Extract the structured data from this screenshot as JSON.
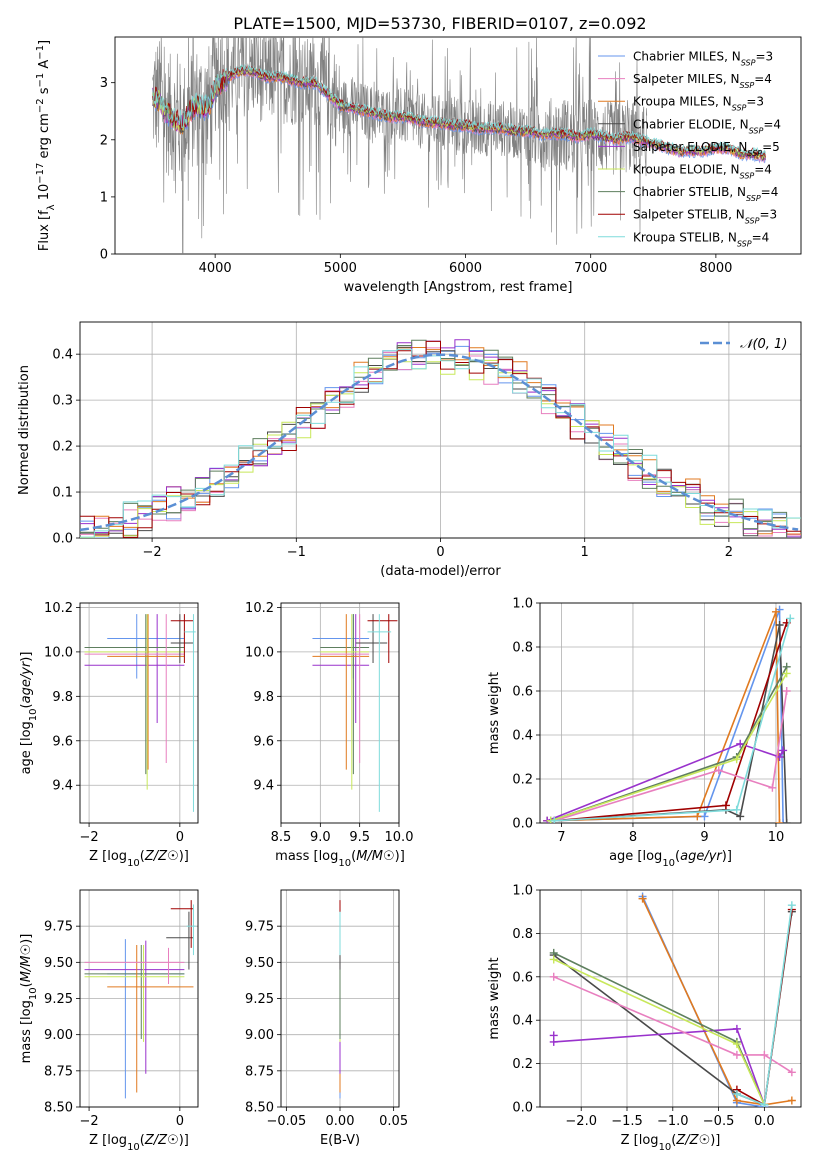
{
  "figure_title": "PLATE=1500, MJD=53730, FIBERID=0107, z=0.092",
  "colors": {
    "data": "#808080",
    "Chabrier MILES": "#6495ED",
    "Salpeter MILES": "#E87FBF",
    "Kroupa MILES": "#E07A20",
    "Chabrier ELODIE": "#4A4A4A",
    "Salpeter ELODIE": "#9932CC",
    "Kroupa ELODIE": "#C8E85A",
    "Chabrier STELIB": "#5E7F5E",
    "Salpeter STELIB": "#A00000",
    "Kroupa STELIB": "#7FDBDB",
    "normal": "#5B8FD4",
    "grid": "#b0b0b0"
  },
  "chart_data": [
    {
      "id": "spectrum",
      "type": "line",
      "title": "PLATE=1500, MJD=53730, FIBERID=0107, z=0.092",
      "xlabel": "wavelength [Angstrom, rest frame]",
      "ylabel": "Flux [f_λ 10^-17 erg cm^-2 s^-1 A^-1]",
      "xlim": [
        3200,
        8680
      ],
      "ylim": [
        0,
        3.8
      ],
      "xticks": [
        4000,
        5000,
        6000,
        7000,
        8000
      ],
      "yticks": [
        0,
        1,
        2,
        3
      ],
      "grid": false,
      "legend_position": "top-right",
      "legend": [
        {
          "name": "Chabrier MILES",
          "nssp": "3",
          "color": "#6495ED"
        },
        {
          "name": "Salpeter MILES",
          "nssp": "4",
          "color": "#E87FBF"
        },
        {
          "name": "Kroupa MILES",
          "nssp": "3",
          "color": "#E07A20"
        },
        {
          "name": "Chabrier ELODIE",
          "nssp": "4",
          "color": "#4A4A4A"
        },
        {
          "name": "Salpeter ELODIE",
          "nssp": "5",
          "color": "#9932CC"
        },
        {
          "name": "Kroupa ELODIE",
          "nssp": "4",
          "color": "#C8E85A"
        },
        {
          "name": "Chabrier STELIB",
          "nssp": "4",
          "color": "#5E7F5E"
        },
        {
          "name": "Salpeter STELIB",
          "nssp": "3",
          "color": "#A00000"
        },
        {
          "name": "Kroupa STELIB",
          "nssp": "4",
          "color": "#7FDBDB"
        }
      ],
      "continuum": {
        "x": [
          3500,
          3550,
          3600,
          3650,
          3700,
          3750,
          3800,
          3850,
          3900,
          3950,
          4000,
          4100,
          4200,
          4300,
          4400,
          4500,
          4600,
          4700,
          4800,
          4900,
          5000,
          5100,
          5200,
          5300,
          5400,
          5500,
          5600,
          5700,
          5800,
          5900,
          6000,
          6100,
          6200,
          6300,
          6400,
          6500,
          6600,
          6700,
          6800,
          6900,
          7000,
          7100,
          7200,
          7300,
          7400,
          7700,
          7800,
          7900,
          8000,
          8100,
          8200,
          8300,
          8400
        ],
        "y": [
          2.75,
          2.7,
          2.5,
          2.4,
          2.3,
          2.3,
          2.5,
          2.6,
          2.55,
          2.6,
          2.9,
          3.1,
          3.2,
          3.2,
          3.1,
          3.1,
          3.05,
          3.0,
          3.0,
          2.8,
          2.6,
          2.55,
          2.5,
          2.45,
          2.4,
          2.4,
          2.35,
          2.3,
          2.3,
          2.25,
          2.25,
          2.2,
          2.2,
          2.2,
          2.15,
          2.15,
          2.1,
          2.1,
          2.1,
          2.05,
          2.1,
          2.05,
          2.0,
          2.05,
          2.0,
          1.8,
          1.8,
          1.8,
          1.85,
          1.85,
          1.75,
          1.75,
          1.7
        ]
      },
      "observed_range": [
        3500,
        7450
      ],
      "model_range": [
        3500,
        8400
      ]
    },
    {
      "id": "residuals",
      "type": "histogram",
      "xlabel": "(data-model)/error",
      "ylabel": "Normed distribution",
      "xlim": [
        -2.5,
        2.5
      ],
      "ylim": [
        0,
        0.47
      ],
      "xticks": [
        -2,
        -1,
        0,
        1,
        2
      ],
      "yticks": [
        0,
        0.1,
        0.2,
        0.3,
        0.4
      ],
      "grid": true,
      "legend_position": "top-right",
      "curve_label": "𝒩(0, 1)",
      "bin_width": 0.1,
      "series_scatter": [
        0.015,
        -0.02,
        0.025,
        -0.01,
        0.03,
        -0.025,
        0.01,
        -0.015,
        0.02
      ]
    },
    {
      "id": "age_vs_Z",
      "type": "errorbar",
      "xlabel": "Z [log10(Z/Z☉)]",
      "ylabel": "age  [log10(age/yr)]",
      "xlim": [
        -2.2,
        0.4
      ],
      "ylim": [
        9.23,
        10.22
      ],
      "xticks": [
        -2,
        0
      ],
      "yticks": [
        9.4,
        9.6,
        9.8,
        10.0,
        10.2
      ],
      "grid": true,
      "points": [
        {
          "x": -0.95,
          "y": 10.06,
          "xlo": -1.6,
          "xhi": 0.1,
          "ylo": 9.88,
          "yhi": 10.17,
          "color": "#6495ED"
        },
        {
          "x": -0.5,
          "y": 9.94,
          "xlo": -2.1,
          "xhi": 0.1,
          "ylo": 9.68,
          "yhi": 10.17,
          "color": "#9932CC"
        },
        {
          "x": -0.75,
          "y": 10.02,
          "xlo": -2.1,
          "xhi": 0.1,
          "ylo": 9.45,
          "yhi": 10.17,
          "color": "#5E7F5E"
        },
        {
          "x": -0.72,
          "y": 10.0,
          "xlo": -2.1,
          "xhi": 0.1,
          "ylo": 9.38,
          "yhi": 10.17,
          "color": "#C8E85A"
        },
        {
          "x": -0.7,
          "y": 9.98,
          "xlo": -1.6,
          "xhi": 0.1,
          "ylo": 9.47,
          "yhi": 10.17,
          "color": "#E07A20"
        },
        {
          "x": -0.3,
          "y": 9.99,
          "xlo": -2.1,
          "xhi": 0.1,
          "ylo": 9.5,
          "yhi": 10.17,
          "color": "#E87FBF"
        },
        {
          "x": 0.0,
          "y": 10.04,
          "xlo": -0.2,
          "xhi": 0.3,
          "ylo": 9.95,
          "yhi": 10.17,
          "color": "#4A4A4A"
        },
        {
          "x": 0.1,
          "y": 10.14,
          "xlo": -0.2,
          "xhi": 0.3,
          "ylo": 9.95,
          "yhi": 10.17,
          "color": "#A00000"
        },
        {
          "x": 0.3,
          "y": 10.09,
          "xlo": 0.1,
          "xhi": 0.35,
          "ylo": 9.28,
          "yhi": 10.17,
          "color": "#7FDBDB"
        }
      ]
    },
    {
      "id": "age_vs_mass",
      "type": "errorbar",
      "xlabel": "mass [log10(M/M☉)]",
      "ylabel": "",
      "xlim": [
        8.5,
        10.0
      ],
      "ylim": [
        9.23,
        10.22
      ],
      "xticks": [
        8.5,
        9.0,
        9.5,
        10.0
      ],
      "yticks": [
        9.4,
        9.6,
        9.8,
        10.0,
        10.2
      ],
      "grid": true,
      "points": [
        {
          "x": 9.42,
          "y": 10.06,
          "xlo": 8.9,
          "xhi": 9.62,
          "ylo": 9.88,
          "yhi": 10.17,
          "color": "#6495ED"
        },
        {
          "x": 9.45,
          "y": 9.94,
          "xlo": 8.9,
          "xhi": 9.62,
          "ylo": 9.68,
          "yhi": 10.17,
          "color": "#9932CC"
        },
        {
          "x": 9.42,
          "y": 10.02,
          "xlo": 9.0,
          "xhi": 9.62,
          "ylo": 9.45,
          "yhi": 10.17,
          "color": "#5E7F5E"
        },
        {
          "x": 9.4,
          "y": 10.0,
          "xlo": 9.0,
          "xhi": 9.62,
          "ylo": 9.38,
          "yhi": 10.17,
          "color": "#C8E85A"
        },
        {
          "x": 9.33,
          "y": 9.98,
          "xlo": 8.9,
          "xhi": 9.62,
          "ylo": 9.47,
          "yhi": 10.17,
          "color": "#E07A20"
        },
        {
          "x": 9.5,
          "y": 9.99,
          "xlo": 9.0,
          "xhi": 9.62,
          "ylo": 9.5,
          "yhi": 10.17,
          "color": "#E87FBF"
        },
        {
          "x": 9.67,
          "y": 10.04,
          "xlo": 9.45,
          "xhi": 9.85,
          "ylo": 9.95,
          "yhi": 10.17,
          "color": "#4A4A4A"
        },
        {
          "x": 9.87,
          "y": 10.14,
          "xlo": 9.6,
          "xhi": 9.98,
          "ylo": 9.95,
          "yhi": 10.17,
          "color": "#A00000"
        },
        {
          "x": 9.75,
          "y": 10.09,
          "xlo": 9.6,
          "xhi": 9.9,
          "ylo": 9.28,
          "yhi": 10.17,
          "color": "#7FDBDB"
        }
      ]
    },
    {
      "id": "weight_vs_age",
      "type": "line",
      "xlabel": "age  [log10(age/yr)]",
      "ylabel": "mass weight",
      "xlim": [
        6.7,
        10.35
      ],
      "ylim": [
        0,
        1.0
      ],
      "xticks": [
        7,
        8,
        9,
        10
      ],
      "yticks": [
        0.0,
        0.2,
        0.4,
        0.6,
        0.8,
        1.0
      ],
      "grid": true,
      "series": [
        {
          "color": "#6495ED",
          "x": [
            6.8,
            9.0,
            10.05,
            10.1
          ],
          "y": [
            0.01,
            0.03,
            0.97,
            0.0
          ]
        },
        {
          "color": "#E07A20",
          "x": [
            6.8,
            8.9,
            10.0,
            10.05
          ],
          "y": [
            0.01,
            0.03,
            0.96,
            0.0
          ]
        },
        {
          "color": "#4A4A4A",
          "x": [
            6.9,
            9.3,
            9.5,
            10.05,
            10.15
          ],
          "y": [
            0.01,
            0.06,
            0.03,
            0.9,
            0.0
          ]
        },
        {
          "color": "#A00000",
          "x": [
            6.9,
            9.3,
            10.15
          ],
          "y": [
            0.01,
            0.08,
            0.91
          ]
        },
        {
          "color": "#9932CC",
          "x": [
            6.8,
            9.5,
            10.05,
            10.1
          ],
          "y": [
            0.01,
            0.36,
            0.3,
            0.33
          ]
        },
        {
          "color": "#E87FBF",
          "x": [
            6.9,
            9.2,
            9.95,
            10.15
          ],
          "y": [
            0.01,
            0.24,
            0.16,
            0.6
          ]
        },
        {
          "color": "#5E7F5E",
          "x": [
            6.85,
            9.45,
            10.15
          ],
          "y": [
            0.01,
            0.3,
            0.71
          ]
        },
        {
          "color": "#C8E85A",
          "x": [
            6.85,
            9.45,
            10.15
          ],
          "y": [
            0.01,
            0.29,
            0.68
          ]
        },
        {
          "color": "#7FDBDB",
          "x": [
            6.9,
            9.45,
            10.2
          ],
          "y": [
            0.01,
            0.06,
            0.93
          ]
        }
      ]
    },
    {
      "id": "mass_vs_Z",
      "type": "errorbar",
      "xlabel": "Z [log10(Z/Z☉)]",
      "ylabel": "mass [log10(M/M☉)]",
      "xlim": [
        -2.2,
        0.4
      ],
      "ylim": [
        8.5,
        10.0
      ],
      "xticks": [
        -2,
        0
      ],
      "yticks": [
        8.5,
        8.75,
        9.0,
        9.25,
        9.5,
        9.75
      ],
      "grid": true,
      "points": [
        {
          "x": -1.2,
          "y": 9.42,
          "xlo": -1.6,
          "xhi": 0.1,
          "ylo": 8.56,
          "yhi": 9.66,
          "color": "#6495ED"
        },
        {
          "x": -0.75,
          "y": 9.45,
          "xlo": -2.1,
          "xhi": 0.1,
          "ylo": 8.73,
          "yhi": 9.65,
          "color": "#9932CC"
        },
        {
          "x": -0.85,
          "y": 9.42,
          "xlo": -2.1,
          "xhi": 0.1,
          "ylo": 8.97,
          "yhi": 9.62,
          "color": "#5E7F5E"
        },
        {
          "x": -0.8,
          "y": 9.4,
          "xlo": -2.1,
          "xhi": 0.1,
          "ylo": 8.95,
          "yhi": 9.62,
          "color": "#C8E85A"
        },
        {
          "x": -0.95,
          "y": 9.33,
          "xlo": -1.6,
          "xhi": 0.3,
          "ylo": 8.6,
          "yhi": 9.62,
          "color": "#E07A20"
        },
        {
          "x": -0.25,
          "y": 9.5,
          "xlo": -2.1,
          "xhi": 0.1,
          "ylo": 9.35,
          "yhi": 9.6,
          "color": "#E87FBF"
        },
        {
          "x": 0.2,
          "y": 9.67,
          "xlo": -0.3,
          "xhi": 0.3,
          "ylo": 9.45,
          "yhi": 9.85,
          "color": "#4A4A4A"
        },
        {
          "x": 0.25,
          "y": 9.87,
          "xlo": -0.2,
          "xhi": 0.3,
          "ylo": 9.6,
          "yhi": 9.93,
          "color": "#A00000"
        },
        {
          "x": 0.3,
          "y": 9.75,
          "xlo": 0.15,
          "xhi": 0.35,
          "ylo": 9.55,
          "yhi": 9.9,
          "color": "#7FDBDB"
        }
      ]
    },
    {
      "id": "mass_vs_ebv",
      "type": "errorbar",
      "xlabel": "E(B-V)",
      "ylabel": "",
      "xlim": [
        -0.055,
        0.055
      ],
      "ylim": [
        8.5,
        10.0
      ],
      "xticks": [
        -0.05,
        0.0,
        0.05
      ],
      "yticks": [
        8.5,
        8.75,
        9.0,
        9.25,
        9.5,
        9.75
      ],
      "grid": true,
      "points": [
        {
          "x": 0.0,
          "y": 9.42,
          "xlo": 0.0,
          "xhi": 0.0,
          "ylo": 8.56,
          "yhi": 9.66,
          "color": "#6495ED"
        },
        {
          "x": 0.0,
          "y": 9.33,
          "xlo": 0.0,
          "xhi": 0.0,
          "ylo": 8.6,
          "yhi": 9.62,
          "color": "#E07A20"
        },
        {
          "x": 0.0,
          "y": 9.45,
          "xlo": 0.0,
          "xhi": 0.0,
          "ylo": 8.73,
          "yhi": 9.65,
          "color": "#9932CC"
        },
        {
          "x": 0.0,
          "y": 9.5,
          "xlo": 0.0,
          "xhi": 0.0,
          "ylo": 9.35,
          "yhi": 9.6,
          "color": "#E87FBF"
        },
        {
          "x": 0.0,
          "y": 9.4,
          "xlo": 0.0,
          "xhi": 0.0,
          "ylo": 8.95,
          "yhi": 9.62,
          "color": "#C8E85A"
        },
        {
          "x": 0.0,
          "y": 9.42,
          "xlo": 0.0,
          "xhi": 0.0,
          "ylo": 8.97,
          "yhi": 9.62,
          "color": "#5E7F5E"
        },
        {
          "x": 0.0,
          "y": 9.67,
          "xlo": 0.0,
          "xhi": 0.0,
          "ylo": 9.45,
          "yhi": 9.85,
          "color": "#4A4A4A"
        },
        {
          "x": 0.0,
          "y": 9.87,
          "xlo": 0.0,
          "xhi": 0.0,
          "ylo": 9.6,
          "yhi": 9.93,
          "color": "#A00000"
        },
        {
          "x": 0.0,
          "y": 9.75,
          "xlo": 0.0,
          "xhi": 0.0,
          "ylo": 9.55,
          "yhi": 9.85,
          "color": "#7FDBDB"
        }
      ]
    },
    {
      "id": "weight_vs_Z",
      "type": "line",
      "xlabel": "Z [log10(Z/Z☉)]",
      "ylabel": "mass weight",
      "xlim": [
        -2.45,
        0.4
      ],
      "ylim": [
        0,
        1.0
      ],
      "xticks": [
        -2.0,
        -1.5,
        -1.0,
        -0.5,
        0.0
      ],
      "yticks": [
        0.0,
        0.2,
        0.4,
        0.6,
        0.8,
        1.0
      ],
      "grid": true,
      "series": [
        {
          "color": "#6495ED",
          "x": [
            -1.33,
            -0.3,
            0.0
          ],
          "y": [
            0.97,
            0.02,
            0.0
          ]
        },
        {
          "color": "#E07A20",
          "x": [
            -1.33,
            -0.3,
            0.0,
            0.3
          ],
          "y": [
            0.96,
            0.03,
            0.01,
            0.03
          ]
        },
        {
          "color": "#4A4A4A",
          "x": [
            -2.3,
            -0.3,
            0.0,
            0.3
          ],
          "y": [
            0.7,
            0.06,
            0.01,
            0.9
          ]
        },
        {
          "color": "#A00000",
          "x": [
            -0.3,
            0.0,
            0.3
          ],
          "y": [
            0.08,
            0.01,
            0.91
          ]
        },
        {
          "color": "#9932CC",
          "x": [
            -2.3,
            -0.3,
            0.0
          ],
          "y": [
            0.3,
            0.36,
            0.01
          ]
        },
        {
          "color": "#9932CC",
          "x": [
            -2.3
          ],
          "y": [
            0.33
          ]
        },
        {
          "color": "#E87FBF",
          "x": [
            -2.3,
            -0.3,
            0.0,
            0.3
          ],
          "y": [
            0.6,
            0.24,
            0.24,
            0.16
          ]
        },
        {
          "color": "#5E7F5E",
          "x": [
            -2.3,
            -0.3,
            0.0
          ],
          "y": [
            0.71,
            0.3,
            0.01
          ]
        },
        {
          "color": "#C8E85A",
          "x": [
            -2.3,
            -0.3,
            0.0
          ],
          "y": [
            0.68,
            0.29,
            0.01
          ]
        },
        {
          "color": "#7FDBDB",
          "x": [
            -0.3,
            0.0,
            0.3
          ],
          "y": [
            0.06,
            0.01,
            0.93
          ]
        }
      ]
    }
  ]
}
